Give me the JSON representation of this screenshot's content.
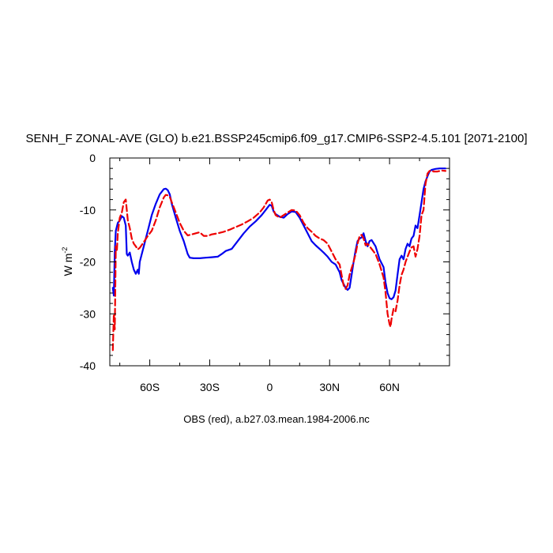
{
  "chart_data": {
    "type": "line",
    "title": "SENH_F ZONAL-AVE (GLO) b.e21.BSSP245cmip6.f09_g17.CMIP6-SSP2-4.5.101 [2071-2100]",
    "ylabel": "W m",
    "ylabel_sup": "-2",
    "xlabel": "",
    "caption": "OBS (red), a.b27.03.mean.1984-2006.nc",
    "xlim": [
      -80,
      90
    ],
    "ylim": [
      -40,
      0
    ],
    "grid": false,
    "x_ticks": [
      {
        "value": -60,
        "label": "60S"
      },
      {
        "value": -30,
        "label": "30S"
      },
      {
        "value": 0,
        "label": "0"
      },
      {
        "value": 30,
        "label": "30N"
      },
      {
        "value": 60,
        "label": "60N"
      }
    ],
    "y_ticks": [
      {
        "value": 0,
        "label": "0"
      },
      {
        "value": -10,
        "label": "-10"
      },
      {
        "value": -20,
        "label": "-20"
      },
      {
        "value": -30,
        "label": "-30"
      },
      {
        "value": -40,
        "label": "-40"
      }
    ],
    "series": [
      {
        "color": "#0000ee",
        "dash": "solid",
        "points": [
          [
            -78.5,
            -25
          ],
          [
            -78,
            -26.5
          ],
          [
            -77.5,
            -18
          ],
          [
            -77,
            -14
          ],
          [
            -76,
            -12.5
          ],
          [
            -75,
            -12
          ],
          [
            -74,
            -11.2
          ],
          [
            -73,
            -11.5
          ],
          [
            -72,
            -13
          ],
          [
            -71.5,
            -18.5
          ],
          [
            -71,
            -18.8
          ],
          [
            -70,
            -18.2
          ],
          [
            -69,
            -20
          ],
          [
            -68,
            -21.5
          ],
          [
            -67,
            -22.3
          ],
          [
            -66,
            -21.5
          ],
          [
            -65.5,
            -22.3
          ],
          [
            -65,
            -20
          ],
          [
            -63,
            -17
          ],
          [
            -61,
            -14
          ],
          [
            -59,
            -11
          ],
          [
            -57,
            -8.8
          ],
          [
            -55,
            -7
          ],
          [
            -53,
            -6
          ],
          [
            -52,
            -5.9
          ],
          [
            -51,
            -6.2
          ],
          [
            -50,
            -7
          ],
          [
            -49,
            -8.8
          ],
          [
            -47,
            -11.5
          ],
          [
            -45,
            -14
          ],
          [
            -43,
            -16
          ],
          [
            -41,
            -18.5
          ],
          [
            -40,
            -19.2
          ],
          [
            -38,
            -19.3
          ],
          [
            -35,
            -19.3
          ],
          [
            -32,
            -19.2
          ],
          [
            -29,
            -19.1
          ],
          [
            -26,
            -19
          ],
          [
            -24,
            -18.5
          ],
          [
            -22,
            -17.9
          ],
          [
            -19,
            -17.5
          ],
          [
            -16,
            -16
          ],
          [
            -13,
            -14.5
          ],
          [
            -10,
            -13.2
          ],
          [
            -7,
            -12.2
          ],
          [
            -4,
            -11
          ],
          [
            -2,
            -10
          ],
          [
            0,
            -9
          ],
          [
            1,
            -9.2
          ],
          [
            2,
            -10.3
          ],
          [
            3,
            -10.8
          ],
          [
            5,
            -11.3
          ],
          [
            7,
            -11.5
          ],
          [
            9,
            -10.8
          ],
          [
            11,
            -10.3
          ],
          [
            13,
            -10.4
          ],
          [
            15,
            -11.5
          ],
          [
            17,
            -13
          ],
          [
            19,
            -14.5
          ],
          [
            21,
            -16
          ],
          [
            23,
            -16.8
          ],
          [
            25,
            -17.5
          ],
          [
            27,
            -18.2
          ],
          [
            29,
            -19
          ],
          [
            31,
            -20
          ],
          [
            33,
            -20.5
          ],
          [
            35,
            -22
          ],
          [
            36,
            -23.5
          ],
          [
            38,
            -25
          ],
          [
            39,
            -25.4
          ],
          [
            40,
            -25
          ],
          [
            41,
            -22.5
          ],
          [
            42,
            -20
          ],
          [
            43,
            -17.8
          ],
          [
            44,
            -16
          ],
          [
            45,
            -15.5
          ],
          [
            46,
            -15.3
          ],
          [
            47,
            -14.5
          ],
          [
            48,
            -16
          ],
          [
            49,
            -17
          ],
          [
            50,
            -16
          ],
          [
            51,
            -15.8
          ],
          [
            53,
            -17
          ],
          [
            55,
            -19.5
          ],
          [
            57,
            -21
          ],
          [
            58,
            -24
          ],
          [
            59,
            -26
          ],
          [
            60,
            -27
          ],
          [
            61,
            -27.2
          ],
          [
            62,
            -26.8
          ],
          [
            63,
            -25.5
          ],
          [
            64,
            -22.5
          ],
          [
            65,
            -19.5
          ],
          [
            66,
            -18.8
          ],
          [
            67,
            -19.5
          ],
          [
            68,
            -17.5
          ],
          [
            69,
            -16.5
          ],
          [
            70,
            -17
          ],
          [
            71,
            -15.5
          ],
          [
            72,
            -15
          ],
          [
            73,
            -13
          ],
          [
            74,
            -13.5
          ],
          [
            75,
            -11
          ],
          [
            76,
            -8.5
          ],
          [
            77,
            -6
          ],
          [
            78,
            -4.5
          ],
          [
            79,
            -3.5
          ],
          [
            80,
            -2.6
          ],
          [
            81,
            -2.3
          ],
          [
            83,
            -2.1
          ],
          [
            85,
            -2
          ],
          [
            87,
            -2
          ],
          [
            88,
            -2
          ]
        ]
      },
      {
        "color": "#ee0000",
        "dash": "dashed",
        "points": [
          [
            -78.5,
            -37
          ],
          [
            -78,
            -30
          ],
          [
            -77.5,
            -33
          ],
          [
            -77,
            -17
          ],
          [
            -76.5,
            -18
          ],
          [
            -76,
            -14.5
          ],
          [
            -75,
            -11.5
          ],
          [
            -74,
            -10.5
          ],
          [
            -73,
            -8.5
          ],
          [
            -72,
            -8
          ],
          [
            -71.5,
            -10
          ],
          [
            -71,
            -12
          ],
          [
            -70,
            -13.5
          ],
          [
            -69,
            -15.5
          ],
          [
            -68,
            -16.5
          ],
          [
            -67,
            -17
          ],
          [
            -66,
            -17.6
          ],
          [
            -65,
            -17.3
          ],
          [
            -63,
            -16.2
          ],
          [
            -61,
            -15
          ],
          [
            -59,
            -14
          ],
          [
            -57,
            -12
          ],
          [
            -55,
            -9.5
          ],
          [
            -53,
            -7.6
          ],
          [
            -52,
            -7.1
          ],
          [
            -51,
            -7.2
          ],
          [
            -50,
            -7.5
          ],
          [
            -49,
            -8.5
          ],
          [
            -47,
            -10.5
          ],
          [
            -45,
            -12.5
          ],
          [
            -43,
            -14
          ],
          [
            -41,
            -14.9
          ],
          [
            -39,
            -14.7
          ],
          [
            -37,
            -14.5
          ],
          [
            -35,
            -14.3
          ],
          [
            -33,
            -15
          ],
          [
            -31,
            -15
          ],
          [
            -29,
            -14.7
          ],
          [
            -26,
            -14.5
          ],
          [
            -23,
            -14.2
          ],
          [
            -20,
            -13.8
          ],
          [
            -17,
            -13.3
          ],
          [
            -14,
            -12.8
          ],
          [
            -11,
            -12.2
          ],
          [
            -8,
            -11.5
          ],
          [
            -5,
            -10.5
          ],
          [
            -3,
            -9.5
          ],
          [
            -1,
            -8.2
          ],
          [
            0,
            -8
          ],
          [
            1,
            -8.5
          ],
          [
            2,
            -10
          ],
          [
            3,
            -11
          ],
          [
            5,
            -11.5
          ],
          [
            7,
            -11
          ],
          [
            9,
            -10.5
          ],
          [
            11,
            -10
          ],
          [
            13,
            -10.1
          ],
          [
            15,
            -11
          ],
          [
            17,
            -12.5
          ],
          [
            19,
            -13.5
          ],
          [
            21,
            -14.2
          ],
          [
            23,
            -15
          ],
          [
            25,
            -15.5
          ],
          [
            27,
            -15.8
          ],
          [
            29,
            -16.5
          ],
          [
            31,
            -18
          ],
          [
            33,
            -19.5
          ],
          [
            35,
            -20.5
          ],
          [
            36,
            -22.5
          ],
          [
            37,
            -24.5
          ],
          [
            38,
            -25.2
          ],
          [
            39,
            -24.5
          ],
          [
            40,
            -22.5
          ],
          [
            42,
            -20
          ],
          [
            43,
            -18.5
          ],
          [
            44,
            -16.5
          ],
          [
            45,
            -15
          ],
          [
            46,
            -14.8
          ],
          [
            47,
            -15.5
          ],
          [
            48,
            -16.8
          ],
          [
            49,
            -16.5
          ],
          [
            50,
            -17
          ],
          [
            51,
            -17.5
          ],
          [
            53,
            -18.5
          ],
          [
            55,
            -20.5
          ],
          [
            57,
            -23
          ],
          [
            58,
            -26
          ],
          [
            59,
            -30
          ],
          [
            60,
            -32
          ],
          [
            60.5,
            -32.5
          ],
          [
            61,
            -31
          ],
          [
            62,
            -29
          ],
          [
            63,
            -29.5
          ],
          [
            64,
            -27.5
          ],
          [
            65,
            -24.5
          ],
          [
            66,
            -22.5
          ],
          [
            67,
            -21.5
          ],
          [
            68,
            -20
          ],
          [
            69,
            -19
          ],
          [
            70,
            -18
          ],
          [
            71,
            -17.2
          ],
          [
            72,
            -17
          ],
          [
            73,
            -19
          ],
          [
            74,
            -17.5
          ],
          [
            75,
            -15
          ],
          [
            76,
            -11
          ],
          [
            77,
            -10
          ],
          [
            78,
            -5
          ],
          [
            79,
            -3
          ],
          [
            80,
            -2.5
          ],
          [
            81,
            -2.4
          ],
          [
            82,
            -2.6
          ],
          [
            84,
            -2.6
          ],
          [
            86,
            -2.4
          ],
          [
            88,
            -2.5
          ]
        ]
      }
    ]
  }
}
